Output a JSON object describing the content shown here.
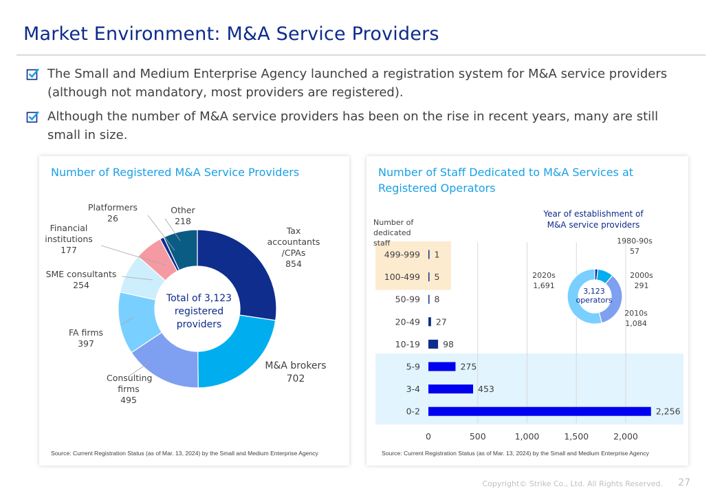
{
  "header": {
    "title": "Market Environment: M&A Service Providers"
  },
  "bullets": [
    {
      "text": "The Small and Medium Enterprise Agency launched a registration system for M&A service providers (although not mandatory, most providers are registered)."
    },
    {
      "text": "Although the number of M&A service providers has been on the rise in recent years, many are still small in size."
    }
  ],
  "panels": {
    "left": {
      "title": "Number of Registered M&A Service Providers",
      "source": "Source: Current Registration Status (as of Mar. 13, 2024) by the Small and Medium Enterprise Agency",
      "center_label": "Total of 3,123\nregistered\nproviders"
    },
    "right": {
      "title": "Number of Staff Dedicated to M&A Services at Registered Operators",
      "source": "Source: Current Registration Status (as of Mar. 13, 2024) by the Small and Medium Enterprise Agency",
      "inset_title": "Year of establishment of\nM&A service providers",
      "inset_center": "3,123\noperators"
    }
  },
  "chart_data": [
    {
      "type": "pie",
      "title": "Number of Registered M&A Service Providers",
      "donut": true,
      "total_label": "Total of 3,123 registered providers",
      "slices": [
        {
          "label": "Tax accountants /CPAs",
          "value": 854,
          "value_label": "854",
          "color": "#0f2d8c"
        },
        {
          "label": "M&A brokers",
          "value": 702,
          "value_label": "702",
          "color": "#00adef"
        },
        {
          "label": "Consulting firms",
          "value": 495,
          "value_label": "495",
          "color": "#7f9ff0"
        },
        {
          "label": "FA firms",
          "value": 397,
          "value_label": "397",
          "color": "#79cfff"
        },
        {
          "label": "SME consultants",
          "value": 254,
          "value_label": "254",
          "color": "#cdeefc"
        },
        {
          "label": "Financial institutions",
          "value": 177,
          "value_label": "177",
          "color": "#f59aa3"
        },
        {
          "label": "Platformers",
          "value": 26,
          "value_label": "26",
          "color": "#0f2d8c"
        },
        {
          "label": "Other",
          "value": 218,
          "value_label": "218",
          "color": "#0b5c84"
        }
      ]
    },
    {
      "type": "bar",
      "orientation": "horizontal",
      "title": "Number of Staff Dedicated to M&A Services at Registered Operators",
      "ylabel": "Number of\ndedicated staff",
      "categories": [
        "499-999",
        "100-499",
        "50-99",
        "20-49",
        "10-19",
        "5-9",
        "3-4",
        "0-2"
      ],
      "values": [
        1,
        5,
        8,
        27,
        98,
        275,
        453,
        2256
      ],
      "value_labels": [
        "1",
        "5",
        "8",
        "27",
        "98",
        "275",
        "453",
        "2,256"
      ],
      "colors": [
        "#0f2d8c",
        "#0f2d8c",
        "#0f2d8c",
        "#0f2d8c",
        "#0f2d8c",
        "#0000f0",
        "#0000f0",
        "#0000f0"
      ],
      "xlim": [
        0,
        2000
      ],
      "xticks": [
        0,
        500,
        1000,
        1500,
        2000
      ],
      "xtick_labels": [
        "0",
        "500",
        "1,000",
        "1,500",
        "2,000"
      ],
      "grid": "vertical",
      "highlight_groups": [
        {
          "categories": [
            "499-999",
            "100-499"
          ],
          "color": "#fdebd0"
        },
        {
          "categories": [
            "5-9",
            "3-4",
            "0-2"
          ],
          "color": "#e2f4fd"
        }
      ]
    },
    {
      "type": "pie",
      "donut": true,
      "title": "Year of establishment of M&A service providers",
      "center_label": "3,123 operators",
      "slices": [
        {
          "label": "1980-90s",
          "value": 57,
          "value_label": "57",
          "color": "#0f2d8c"
        },
        {
          "label": "2000s",
          "value": 291,
          "value_label": "291",
          "color": "#00adef"
        },
        {
          "label": "2010s",
          "value": 1084,
          "value_label": "1,084",
          "color": "#7f9ff0"
        },
        {
          "label": "2020s",
          "value": 1691,
          "value_label": "1,691",
          "color": "#79cfff"
        }
      ]
    }
  ],
  "footer": {
    "copyright": "Copyright© Strike Co., Ltd. All Rights Reserved.",
    "page_number": "27"
  }
}
